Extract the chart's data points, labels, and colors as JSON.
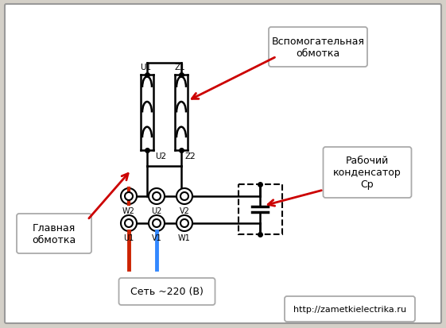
{
  "bg_color": "#d4d0c8",
  "diagram_bg": "#ffffff",
  "line_color": "#000000",
  "website": "http://zametkielectrika.ru",
  "net_label": "Сеть ~220 (В)",
  "glavnaya_label": "Главная\nобмотка",
  "vspom_label": "Вспомогательная\nобмотка",
  "kondensator_label": "Рабочий\nконденсатор\nСр"
}
